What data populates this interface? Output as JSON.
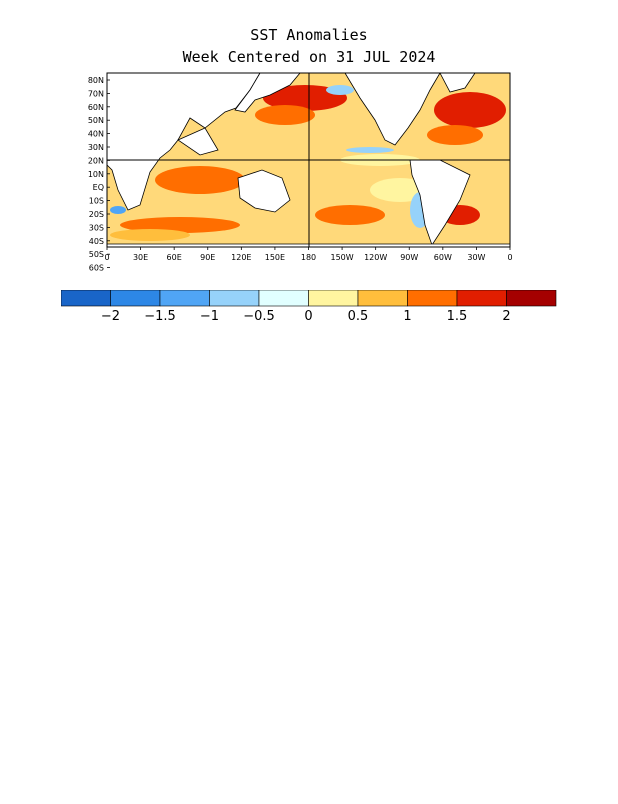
{
  "title": "SST Anomalies",
  "subtitle": "Week Centered on 31 JUL 2024",
  "map": {
    "lat_labels": [
      "80N",
      "70N",
      "60N",
      "50N",
      "40N",
      "30N",
      "20N",
      "10N",
      "EQ",
      "10S",
      "20S",
      "30S",
      "40S",
      "50S",
      "60S"
    ],
    "lon_labels": [
      "0",
      "30E",
      "60E",
      "90E",
      "120E",
      "150E",
      "180",
      "150W",
      "120W",
      "90W",
      "60W",
      "30W",
      "0"
    ]
  },
  "colorbar": {
    "colors": [
      "#1965c8",
      "#2d87e6",
      "#50a5f5",
      "#96d2fa",
      "#e1ffff",
      "#fff5a0",
      "#ffbe3c",
      "#ff6e00",
      "#e11e00",
      "#a50000"
    ],
    "tick_labels": [
      "−2",
      "−1.5",
      "−1",
      "−0.5",
      "0",
      "0.5",
      "1",
      "1.5",
      "2"
    ]
  }
}
